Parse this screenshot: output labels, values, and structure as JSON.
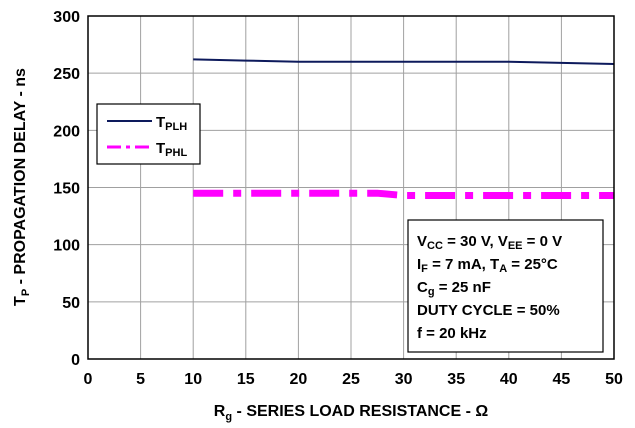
{
  "chart_data": {
    "type": "line",
    "xlabel": {
      "main": "R",
      "sub": "g",
      "rest": " - SERIES LOAD RESISTANCE - Ω"
    },
    "ylabel": {
      "main": "T",
      "sub": "P",
      "rest": " - PROPAGATION DELAY - ns"
    },
    "xlim": [
      0,
      50
    ],
    "ylim": [
      0,
      300
    ],
    "xticks": [
      "0",
      "5",
      "10",
      "15",
      "20",
      "25",
      "30",
      "35",
      "40",
      "45",
      "50"
    ],
    "yticks": [
      "0",
      "50",
      "100",
      "150",
      "200",
      "250",
      "300"
    ],
    "grid": true,
    "legend_position": "left",
    "series": [
      {
        "name": {
          "main": "T",
          "sub": "PLH"
        },
        "color": "#0d1a5c",
        "style": "solid",
        "x": [
          10,
          15,
          20,
          25,
          30,
          35,
          40,
          45,
          50
        ],
        "y": [
          262,
          261,
          260,
          260,
          260,
          260,
          260,
          259,
          258
        ]
      },
      {
        "name": {
          "main": "T",
          "sub": "PHL"
        },
        "color": "#ff00ff",
        "style": "dash-dot",
        "x": [
          10,
          15,
          20,
          25,
          27.5,
          30,
          35,
          40,
          45,
          50
        ],
        "y": [
          145,
          145,
          145,
          145,
          145,
          143,
          143,
          143,
          143,
          143
        ]
      }
    ],
    "annotation": {
      "lines": [
        [
          {
            "t": "V"
          },
          {
            "t": "CC",
            "sub": true
          },
          {
            "t": " = 30 V, V"
          },
          {
            "t": "EE",
            "sub": true
          },
          {
            "t": " = 0 V"
          }
        ],
        [
          {
            "t": "I"
          },
          {
            "t": "F",
            "sub": true
          },
          {
            "t": " = 7 mA, T"
          },
          {
            "t": "A",
            "sub": true
          },
          {
            "t": " = 25°C"
          }
        ],
        [
          {
            "t": "C"
          },
          {
            "t": "g",
            "sub": true
          },
          {
            "t": " = 25 nF"
          }
        ],
        [
          {
            "t": "DUTY CYCLE = 50%"
          }
        ],
        [
          {
            "t": "f = 20 kHz"
          }
        ]
      ]
    }
  }
}
